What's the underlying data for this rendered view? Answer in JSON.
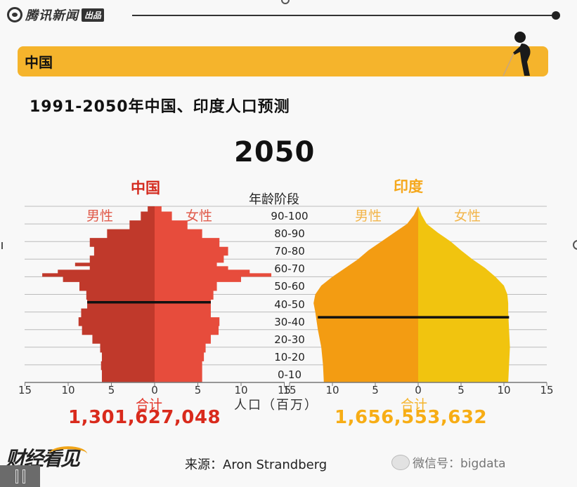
{
  "header": {
    "brand_name": "腾讯新闻",
    "brand_tag": "出品"
  },
  "section": {
    "label": "中国",
    "icon": "elderly-person-with-cane-icon"
  },
  "title": "1991-2050年中国、印度人口预测",
  "year": "2050",
  "age_axis_title": "年龄阶段",
  "age_labels": [
    "90-100",
    "80-90",
    "70-80",
    "60-70",
    "50-60",
    "40-50",
    "30-40",
    "20-30",
    "10-20",
    "0-10"
  ],
  "x_axis_label": "人口（百万）",
  "x_ticks": [
    "15",
    "10",
    "5",
    "0",
    "5",
    "10",
    "15"
  ],
  "china": {
    "title": "中国",
    "male_label": "男性",
    "female_label": "女性",
    "total_label": "合计",
    "total_value": "1,301,627,048",
    "colors": {
      "male": "#c0392b",
      "female": "#e74c3c",
      "title": "#d42a1e"
    }
  },
  "india": {
    "title": "印度",
    "male_label": "男性",
    "female_label": "女性",
    "total_label": "合计",
    "total_value": "1,656,553,632",
    "colors": {
      "male": "#f39c12",
      "female": "#f1c40f",
      "title": "#f5a81c"
    }
  },
  "footer": {
    "logo_text": "财经看见",
    "source": "来源：Aron Strandberg",
    "watermark": "微信号：bigdata"
  },
  "chart_data": [
    {
      "type": "bar",
      "orientation": "horizontal",
      "subtype": "population-pyramid",
      "title": "中国 2050",
      "xlabel": "人口（百万）",
      "ylabel": "年龄阶段",
      "xlim": [
        -15,
        15
      ],
      "ylim": [
        0,
        100
      ],
      "grid": true,
      "age_midpoints": [
        2,
        7,
        12,
        17,
        22,
        27,
        32,
        37,
        42,
        47,
        52,
        57,
        60,
        62,
        64,
        66,
        68,
        72,
        77,
        82,
        87,
        92,
        97,
        100
      ],
      "series": [
        {
          "name": "男性",
          "values": [
            -6.1,
            -6.2,
            -6.1,
            -6.3,
            -7.2,
            -8.4,
            -8.8,
            -8.5,
            -7.8,
            -7.9,
            -8.7,
            -10.6,
            -13.0,
            -11.2,
            -7.5,
            -9.2,
            -7.5,
            -7.0,
            -7.5,
            -5.5,
            -2.9,
            -1.6,
            -0.8,
            0
          ]
        },
        {
          "name": "女性",
          "values": [
            5.5,
            5.5,
            5.7,
            5.9,
            6.5,
            7.4,
            7.5,
            6.5,
            6.5,
            6.8,
            7.2,
            10.0,
            13.5,
            11.0,
            8.5,
            7.2,
            8.0,
            8.5,
            7.5,
            5.5,
            3.8,
            2.0,
            0.8,
            0
          ]
        }
      ],
      "annotation": "horizontal median-age line at ~45",
      "total": "1,301,627,048"
    },
    {
      "type": "bar",
      "orientation": "horizontal",
      "subtype": "population-pyramid",
      "title": "印度 2050",
      "xlabel": "人口（百万）",
      "ylabel": "年龄阶段",
      "xlim": [
        -15,
        15
      ],
      "ylim": [
        0,
        100
      ],
      "grid": true,
      "age_midpoints": [
        2,
        10,
        20,
        30,
        40,
        45,
        50,
        55,
        60,
        65,
        70,
        75,
        80,
        85,
        90,
        95,
        100
      ],
      "series": [
        {
          "name": "男性",
          "values": [
            -11.0,
            -11.1,
            -11.3,
            -11.7,
            -12.0,
            -12.2,
            -12.0,
            -11.3,
            -10.0,
            -8.5,
            -7.0,
            -5.8,
            -4.3,
            -2.8,
            -1.3,
            -0.5,
            0
          ]
        },
        {
          "name": "女性",
          "values": [
            10.5,
            10.6,
            10.7,
            10.6,
            10.5,
            10.5,
            10.4,
            10.0,
            9.0,
            7.8,
            6.3,
            5.0,
            3.8,
            2.3,
            1.0,
            0.4,
            0
          ]
        }
      ],
      "annotation": "horizontal median-age line at ~37",
      "total": "1,656,553,632"
    }
  ]
}
